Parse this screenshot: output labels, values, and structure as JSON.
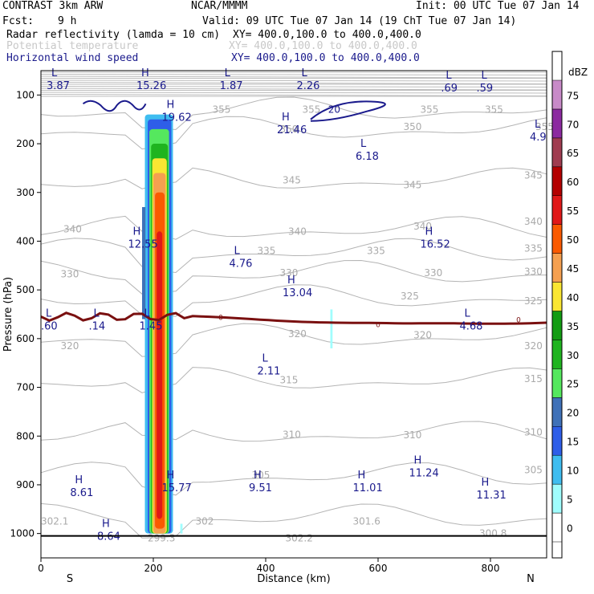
{
  "header": {
    "model": "CONTRAST  3km ARW",
    "center": "NCAR/MMMM",
    "init": "Init: 00 UTC Tue 07 Jan 14",
    "fcst_label": "Fcst:",
    "fcst_value": "9 h",
    "valid": "Valid: 09 UTC Tue 07 Jan 14 (19 ChT Tue 07 Jan 14)",
    "fields": [
      {
        "name": "Radar reflectivity (lamda = 10 cm)",
        "xy": "XY= 400.0,100.0 to 400.0,400.0",
        "style": "black"
      },
      {
        "name": "Potential temperature",
        "xy": "XY= 400.0,100.0 to 400.0,400.0",
        "style": "gray"
      },
      {
        "name": "Horizontal wind speed",
        "xy": "XY= 400.0,100.0 to 400.0,400.0",
        "style": "navy"
      }
    ]
  },
  "chart_data": {
    "type": "contour",
    "xlabel": "Distance (km)",
    "ylabel": "Pressure (hPa)",
    "x_ticks": [
      0,
      200,
      400,
      600,
      800
    ],
    "y_ticks": [
      100,
      200,
      300,
      400,
      500,
      600,
      700,
      800,
      900,
      1000
    ],
    "xlim": [
      0,
      900
    ],
    "ylim": [
      1050,
      50
    ],
    "ends": {
      "left": "S",
      "right": "N"
    },
    "colorbar": {
      "unit": "dBZ",
      "levels": [
        0,
        5,
        10,
        15,
        20,
        25,
        30,
        35,
        40,
        45,
        50,
        55,
        60,
        65,
        70,
        75
      ],
      "colors": [
        "#ffffff",
        "#a0fdfd",
        "#3fbdf0",
        "#2e5ee8",
        "#3f71b8",
        "#55e85e",
        "#1fb41f",
        "#139c13",
        "#fae632",
        "#f5a050",
        "#fa5a00",
        "#e01818",
        "#b40000",
        "#a03c50",
        "#8c2aa0",
        "#c88ac8"
      ]
    },
    "theta_labels": [
      {
        "text": "355",
        "x": 305,
        "p": 130
      },
      {
        "text": "355",
        "x": 465,
        "p": 130
      },
      {
        "text": "355",
        "x": 675,
        "p": 130
      },
      {
        "text": "355",
        "x": 790,
        "p": 130
      },
      {
        "text": "355",
        "x": 880,
        "p": 165
      },
      {
        "text": "350",
        "x": 425,
        "p": 170
      },
      {
        "text": "350",
        "x": 645,
        "p": 165
      },
      {
        "text": "345",
        "x": 430,
        "p": 275
      },
      {
        "text": "345",
        "x": 645,
        "p": 285
      },
      {
        "text": "345",
        "x": 860,
        "p": 265
      },
      {
        "text": "340",
        "x": 40,
        "p": 375
      },
      {
        "text": "340",
        "x": 440,
        "p": 380
      },
      {
        "text": "340",
        "x": 663,
        "p": 370
      },
      {
        "text": "340",
        "x": 860,
        "p": 360
      },
      {
        "text": "335",
        "x": 385,
        "p": 420
      },
      {
        "text": "335",
        "x": 580,
        "p": 420
      },
      {
        "text": "335",
        "x": 860,
        "p": 415
      },
      {
        "text": "330",
        "x": 35,
        "p": 468
      },
      {
        "text": "330",
        "x": 425,
        "p": 465
      },
      {
        "text": "330",
        "x": 682,
        "p": 465
      },
      {
        "text": "330",
        "x": 860,
        "p": 463
      },
      {
        "text": "325",
        "x": 640,
        "p": 513
      },
      {
        "text": "325",
        "x": 860,
        "p": 523
      },
      {
        "text": "320",
        "x": 35,
        "p": 615
      },
      {
        "text": "320",
        "x": 440,
        "p": 590
      },
      {
        "text": "320",
        "x": 663,
        "p": 593
      },
      {
        "text": "320",
        "x": 860,
        "p": 615
      },
      {
        "text": "315",
        "x": 425,
        "p": 685
      },
      {
        "text": "315",
        "x": 860,
        "p": 683
      },
      {
        "text": "310",
        "x": 430,
        "p": 797
      },
      {
        "text": "310",
        "x": 645,
        "p": 798
      },
      {
        "text": "310",
        "x": 860,
        "p": 792
      },
      {
        "text": "305",
        "x": 375,
        "p": 880
      },
      {
        "text": "305",
        "x": 860,
        "p": 870
      },
      {
        "text": "302.1",
        "x": 0,
        "p": 975
      },
      {
        "text": "302",
        "x": 275,
        "p": 975
      },
      {
        "text": "301.6",
        "x": 555,
        "p": 975
      },
      {
        "text": "300.8",
        "x": 780,
        "p": 1000
      },
      {
        "text": "299.3",
        "x": 190,
        "p": 1010
      },
      {
        "text": "302.2",
        "x": 435,
        "p": 1010
      }
    ],
    "extrema": [
      {
        "kind": "L",
        "value": "3.87",
        "x": 10,
        "p": 75
      },
      {
        "kind": "H",
        "value": "15.26",
        "x": 170,
        "p": 75
      },
      {
        "kind": "L",
        "value": "1.87",
        "x": 318,
        "p": 75
      },
      {
        "kind": "L",
        "value": "2.26",
        "x": 455,
        "p": 75
      },
      {
        "kind": "L",
        "value": ".69",
        "x": 712,
        "p": 80
      },
      {
        "kind": "L",
        "value": ".59",
        "x": 775,
        "p": 80
      },
      {
        "kind": "H",
        "value": "19.62",
        "x": 215,
        "p": 140
      },
      {
        "kind": "H",
        "value": "21.46",
        "x": 420,
        "p": 165
      },
      {
        "kind": "L",
        "value": "4.9",
        "x": 870,
        "p": 180
      },
      {
        "kind": "L",
        "value": "6.18",
        "x": 560,
        "p": 220
      },
      {
        "kind": "H",
        "value": "12.55",
        "x": 155,
        "p": 400
      },
      {
        "kind": "H",
        "value": "16.52",
        "x": 675,
        "p": 400
      },
      {
        "kind": "L",
        "value": "4.76",
        "x": 335,
        "p": 440
      },
      {
        "kind": "H",
        "value": "13.04",
        "x": 430,
        "p": 500
      },
      {
        "kind": "L",
        "value": ".60",
        "x": 0,
        "p": 568
      },
      {
        "kind": "L",
        "value": ".14",
        "x": 85,
        "p": 568
      },
      {
        "kind": "L",
        "value": "1.45",
        "x": 175,
        "p": 568
      },
      {
        "kind": "L",
        "value": "4.68",
        "x": 745,
        "p": 568
      },
      {
        "kind": "L",
        "value": "2.11",
        "x": 385,
        "p": 660
      },
      {
        "kind": "H",
        "value": "8.61",
        "x": 52,
        "p": 910
      },
      {
        "kind": "H",
        "value": "15.77",
        "x": 215,
        "p": 900
      },
      {
        "kind": "H",
        "value": "9.51",
        "x": 370,
        "p": 900
      },
      {
        "kind": "H",
        "value": "11.01",
        "x": 555,
        "p": 900
      },
      {
        "kind": "H",
        "value": "11.24",
        "x": 655,
        "p": 870
      },
      {
        "kind": "H",
        "value": "11.31",
        "x": 775,
        "p": 915
      },
      {
        "kind": "H",
        "value": "8.64",
        "x": 100,
        "p": 1000
      }
    ],
    "wind_contour_labels": [
      {
        "text": "20",
        "x": 522,
        "p": 130
      }
    ],
    "zero_line_labels": [
      {
        "text": "0",
        "x": 320,
        "p": 555
      },
      {
        "text": "0",
        "x": 600,
        "p": 570
      },
      {
        "text": "0",
        "x": 850,
        "p": 560
      }
    ]
  }
}
